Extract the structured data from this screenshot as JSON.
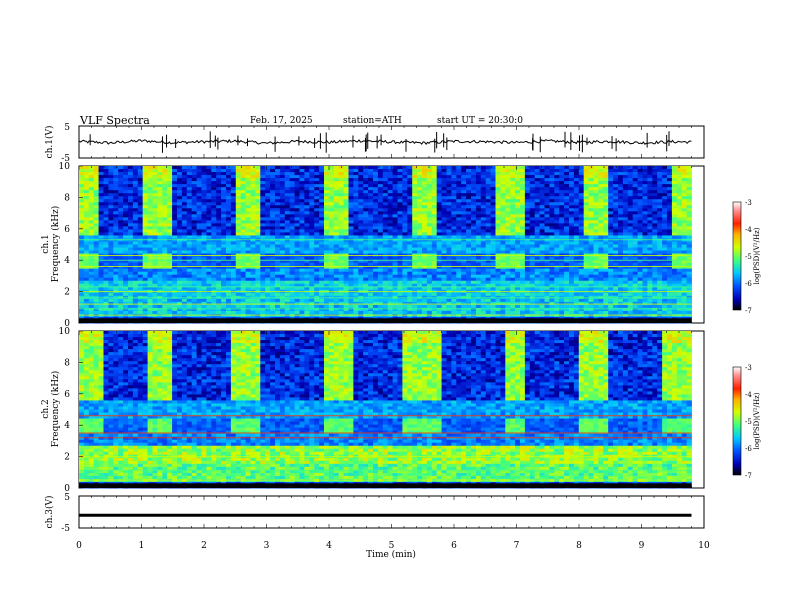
{
  "header": {
    "title": "VLF Spectra",
    "date": "Feb. 17, 2025",
    "station": "station=ATH",
    "start": "start UT = 20:30:0"
  },
  "chart_data": [
    {
      "type": "line",
      "panel": "ch1-waveform",
      "ylabel": "ch.1(V)",
      "ylim": [
        -5,
        5
      ],
      "yticks": [
        "5",
        "-5"
      ],
      "x": [
        0,
        0.5,
        1.0,
        1.5,
        2.0,
        2.5,
        3.0,
        3.5,
        4.0,
        4.5,
        5.0,
        5.5,
        6.0,
        6.5,
        7.0,
        7.5,
        8.0,
        8.5,
        9.0,
        9.5,
        9.8
      ],
      "values": [
        0.2,
        -0.3,
        0.4,
        -0.2,
        0.1,
        0.3,
        -0.4,
        0.2,
        -0.1,
        0.4,
        0.0,
        -0.3,
        0.2,
        0.1,
        -0.2,
        0.3,
        -0.1,
        0.2,
        -0.3,
        0.1,
        0.0
      ],
      "color": "#000000"
    },
    {
      "type": "heatmap",
      "panel": "ch1-spectrogram",
      "ylabel": "ch.1\nFrequency (kHz)",
      "ylim": [
        0,
        10
      ],
      "yticks": [
        "0",
        "2",
        "4",
        "6",
        "8",
        "10"
      ],
      "xlim": [
        0,
        10
      ],
      "data_end_min": 9.8,
      "quiet_intervals_min": [
        [
          0.35,
          1.0
        ],
        [
          1.5,
          2.5
        ],
        [
          2.9,
          3.9
        ],
        [
          4.3,
          5.3
        ],
        [
          5.7,
          6.7
        ],
        [
          7.1,
          8.1
        ],
        [
          8.5,
          9.45
        ]
      ],
      "line_frequencies_khz": [
        0.5,
        0.9,
        1.2,
        1.6,
        2.0,
        2.3,
        3.6,
        4.0,
        4.3,
        5.3
      ]
    },
    {
      "type": "heatmap",
      "panel": "ch2-spectrogram",
      "ylabel": "ch.2\nFrequency (kHz)",
      "ylim": [
        0,
        10
      ],
      "yticks": [
        "0",
        "2",
        "4",
        "6",
        "8",
        "10"
      ],
      "xlim": [
        0,
        10
      ],
      "data_end_min": 9.8,
      "quiet_intervals_min": [
        [
          0.4,
          1.1
        ],
        [
          1.5,
          2.4
        ],
        [
          2.9,
          3.9
        ],
        [
          4.4,
          5.2
        ],
        [
          5.8,
          6.8
        ],
        [
          7.1,
          8.0
        ],
        [
          8.5,
          9.3
        ]
      ],
      "line_frequencies_khz": [
        0.5,
        1.1,
        2.0,
        3.2,
        3.5,
        4.6
      ]
    },
    {
      "type": "line",
      "panel": "ch3-waveform",
      "ylabel": "ch.3(V)",
      "ylim": [
        -5,
        5
      ],
      "yticks": [
        "5",
        "-5"
      ],
      "x": [
        0,
        9.8
      ],
      "values": [
        -1,
        -1
      ],
      "color": "#000000"
    }
  ],
  "x_axis": {
    "label": "Time (min)",
    "ticks": [
      "0",
      "1",
      "2",
      "3",
      "4",
      "5",
      "6",
      "7",
      "8",
      "9",
      "10"
    ]
  },
  "colorbar": {
    "label": "log(PSD)(V²/Hz)",
    "ticks": [
      "-3",
      "-4",
      "-5",
      "-6",
      "-7"
    ],
    "range": [
      -7,
      -3
    ],
    "colormap": [
      "#000000",
      "#0000b4",
      "#0050ff",
      "#00c8ff",
      "#40ff80",
      "#d0ff00",
      "#ffb000",
      "#ff2000",
      "#ff9090",
      "#ffffff"
    ]
  }
}
